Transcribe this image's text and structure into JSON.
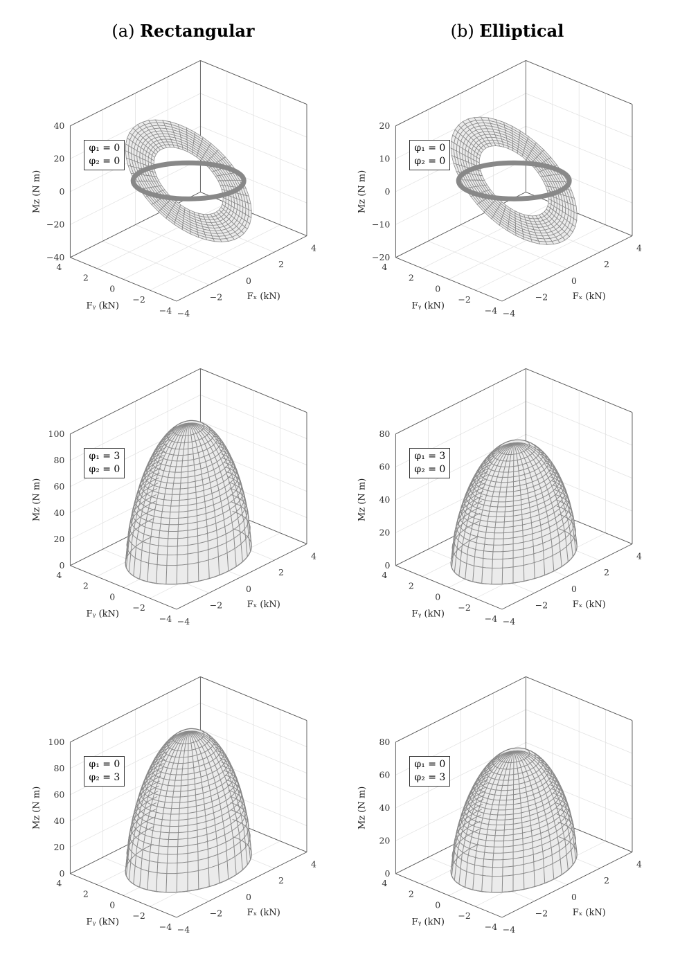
{
  "columns": [
    {
      "prefix": "(a)",
      "name": "Rectangular"
    },
    {
      "prefix": "(b)",
      "name": "Elliptical"
    }
  ],
  "chart_data": [
    {
      "type": "surface",
      "column": "Rectangular",
      "phi1": "0",
      "phi2": "0",
      "legend": [
        "φ₁ = 0",
        "φ₂ = 0"
      ],
      "xlabel": "F_x (kN)",
      "ylabel": "F_y (kN)",
      "zlabel": "M_z (N m)",
      "xlim": [
        -4,
        4
      ],
      "ylim": [
        -4,
        4
      ],
      "zlim": [
        -40,
        40
      ],
      "xticks": [
        "−4",
        "−2",
        "0",
        "2",
        "4"
      ],
      "yticks": [
        "−4",
        "−2",
        "0",
        "2",
        "4"
      ],
      "zticks": [
        "−40",
        "−20",
        "0",
        "20",
        "40"
      ],
      "zmax": 30,
      "shape": "twisted"
    },
    {
      "type": "surface",
      "column": "Elliptical",
      "phi1": "0",
      "phi2": "0",
      "legend": [
        "φ₁ = 0",
        "φ₂ = 0"
      ],
      "xlabel": "F_x (kN)",
      "ylabel": "F_y (kN)",
      "zlabel": "M_z (N m)",
      "xlim": [
        -4,
        4
      ],
      "ylim": [
        -4,
        4
      ],
      "zlim": [
        -20,
        20
      ],
      "xticks": [
        "−4",
        "−2",
        "0",
        "2",
        "4"
      ],
      "yticks": [
        "−4",
        "−2",
        "0",
        "2",
        "4"
      ],
      "zticks": [
        "−20",
        "−10",
        "0",
        "10",
        "20"
      ],
      "zmax": 16,
      "shape": "twisted"
    },
    {
      "type": "surface",
      "column": "Rectangular",
      "phi1": "3",
      "phi2": "0",
      "legend": [
        "φ₁ = 3",
        "φ₂ = 0"
      ],
      "xlabel": "F_x (kN)",
      "ylabel": "F_y (kN)",
      "zlabel": "M_z (N m)",
      "xlim": [
        -4,
        4
      ],
      "ylim": [
        -4,
        4
      ],
      "zlim": [
        0,
        100
      ],
      "xticks": [
        "−4",
        "−2",
        "0",
        "2",
        "4"
      ],
      "yticks": [
        "−4",
        "−2",
        "0",
        "2",
        "4"
      ],
      "zticks": [
        "0",
        "20",
        "40",
        "60",
        "80",
        "100"
      ],
      "zmax": 100,
      "shape": "dome"
    },
    {
      "type": "surface",
      "column": "Elliptical",
      "phi1": "3",
      "phi2": "0",
      "legend": [
        "φ₁ = 3",
        "φ₂ = 0"
      ],
      "xlabel": "F_x (kN)",
      "ylabel": "F_y (kN)",
      "zlabel": "M_z (N m)",
      "xlim": [
        -4,
        4
      ],
      "ylim": [
        -4,
        4
      ],
      "zlim": [
        0,
        80
      ],
      "xticks": [
        "−4",
        "−2",
        "0",
        "2",
        "4"
      ],
      "yticks": [
        "−4",
        "−2",
        "0",
        "2",
        "4"
      ],
      "zticks": [
        "0",
        "20",
        "40",
        "60",
        "80"
      ],
      "zmax": 68,
      "shape": "dome"
    },
    {
      "type": "surface",
      "column": "Rectangular",
      "phi1": "0",
      "phi2": "3",
      "legend": [
        "φ₁ = 0",
        "φ₂ = 3"
      ],
      "xlabel": "F_x (kN)",
      "ylabel": "F_y (kN)",
      "zlabel": "M_z (N m)",
      "xlim": [
        -4,
        4
      ],
      "ylim": [
        -4,
        4
      ],
      "zlim": [
        0,
        100
      ],
      "xticks": [
        "−4",
        "−2",
        "0",
        "2",
        "4"
      ],
      "yticks": [
        "−4",
        "−2",
        "0",
        "2",
        "4"
      ],
      "zticks": [
        "0",
        "20",
        "40",
        "60",
        "80",
        "100"
      ],
      "zmax": 100,
      "shape": "dome"
    },
    {
      "type": "surface",
      "column": "Elliptical",
      "phi1": "0",
      "phi2": "3",
      "legend": [
        "φ₁ = 0",
        "φ₂ = 3"
      ],
      "xlabel": "F_x (kN)",
      "ylabel": "F_y (kN)",
      "zlabel": "M_z (N m)",
      "xlim": [
        -4,
        4
      ],
      "ylim": [
        -4,
        4
      ],
      "zlim": [
        0,
        80
      ],
      "xticks": [
        "−4",
        "−2",
        "0",
        "2",
        "4"
      ],
      "yticks": [
        "−4",
        "−2",
        "0",
        "2",
        "4"
      ],
      "zticks": [
        "0",
        "20",
        "40",
        "60",
        "80"
      ],
      "zmax": 68,
      "shape": "dome"
    }
  ]
}
